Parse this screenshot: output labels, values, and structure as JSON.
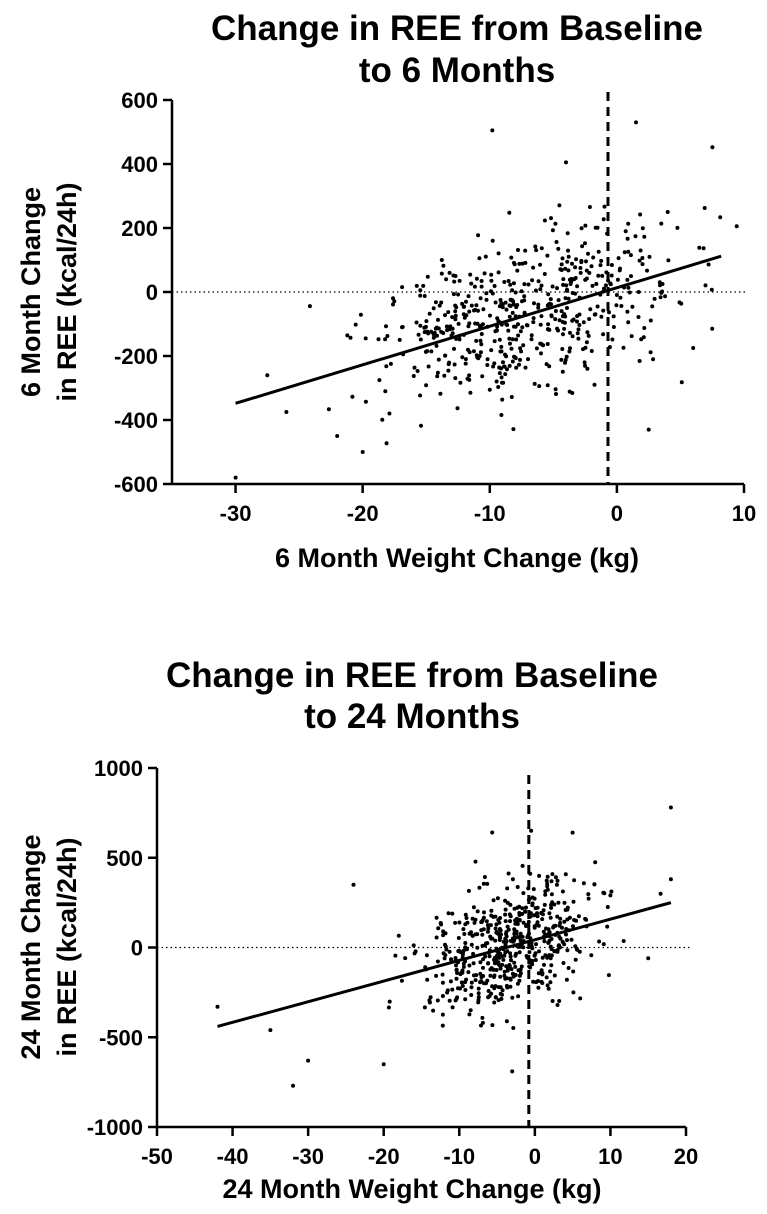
{
  "chart_data": [
    {
      "type": "scatter",
      "title_lines": [
        "Change in REE from Baseline",
        "to 6 Months"
      ],
      "xlabel": "6 Month Weight Change (kg)",
      "ylabel_lines": [
        "6 Month Change",
        "in REE (kcal/24h)"
      ],
      "xlim": [
        -35,
        10
      ],
      "ylim": [
        -600,
        600
      ],
      "x_ticks": [
        -30,
        -20,
        -10,
        0,
        10
      ],
      "y_ticks": [
        -600,
        -400,
        -200,
        0,
        200,
        400,
        600
      ],
      "x_tick_labels": [
        "-30",
        "-20",
        "-10",
        "0",
        "10"
      ],
      "y_tick_labels": [
        "-600",
        "-400",
        "-200",
        "0",
        "200",
        "400",
        "600"
      ],
      "zero_line": {
        "y": 0,
        "style": "dotted"
      },
      "vertical_line": {
        "x": -0.7,
        "style": "dashed"
      },
      "regression_line": {
        "x": [
          -30,
          8.2
        ],
        "y": [
          -348,
          112
        ]
      },
      "scatter_summary": {
        "n_points_approx": 550,
        "x_center": -7,
        "x_sd": 6,
        "y_intercept": 13,
        "y_slope": 12,
        "y_residual_sd": 120
      },
      "outliers": [
        {
          "x": -30,
          "y": -580
        },
        {
          "x": -20,
          "y": -500
        },
        {
          "x": -22,
          "y": -450
        },
        {
          "x": -9.8,
          "y": 505
        },
        {
          "x": 1.5,
          "y": 530
        },
        {
          "x": -4,
          "y": 405
        },
        {
          "x": 2.5,
          "y": -430
        },
        {
          "x": 7.5,
          "y": -115
        },
        {
          "x": -27.5,
          "y": -260
        },
        {
          "x": -26,
          "y": -375
        },
        {
          "x": 4,
          "y": 250
        },
        {
          "x": 6,
          "y": -175
        }
      ],
      "grid": false
    },
    {
      "type": "scatter",
      "title_lines": [
        "Change in REE from Baseline",
        "to 24 Months"
      ],
      "xlabel": "24 Month Weight Change (kg)",
      "ylabel_lines": [
        "24 Month Change",
        "in REE (kcal/24h)"
      ],
      "xlim": [
        -50,
        20
      ],
      "ylim": [
        -1000,
        1000
      ],
      "x_ticks": [
        -50,
        -40,
        -30,
        -20,
        -10,
        0,
        10,
        20
      ],
      "y_ticks": [
        -1000,
        -500,
        0,
        500,
        1000
      ],
      "x_tick_labels": [
        "-50",
        "-40",
        "-30",
        "-20",
        "-10",
        "0",
        "10",
        "20"
      ],
      "y_tick_labels": [
        "-1000",
        "-500",
        "0",
        "500",
        "1000"
      ],
      "zero_line": {
        "y": 0,
        "style": "dotted"
      },
      "vertical_line": {
        "x": -0.8,
        "style": "dashed"
      },
      "regression_line": {
        "x": [
          -42,
          18
        ],
        "y": [
          -440,
          250
        ]
      },
      "scatter_summary": {
        "n_points_approx": 550,
        "x_center": -3,
        "x_sd": 6,
        "y_intercept": 45,
        "y_slope": 11.5,
        "y_residual_sd": 175
      },
      "outliers": [
        {
          "x": -42,
          "y": -330
        },
        {
          "x": -32,
          "y": -770
        },
        {
          "x": -30,
          "y": -630
        },
        {
          "x": -20,
          "y": -650
        },
        {
          "x": 18,
          "y": 780
        },
        {
          "x": 18,
          "y": 380
        },
        {
          "x": -24,
          "y": 350
        },
        {
          "x": -35,
          "y": -460
        },
        {
          "x": 15,
          "y": -60
        },
        {
          "x": -0.5,
          "y": 650
        },
        {
          "x": 5,
          "y": 640
        },
        {
          "x": -3,
          "y": -690
        }
      ],
      "grid": false
    }
  ]
}
